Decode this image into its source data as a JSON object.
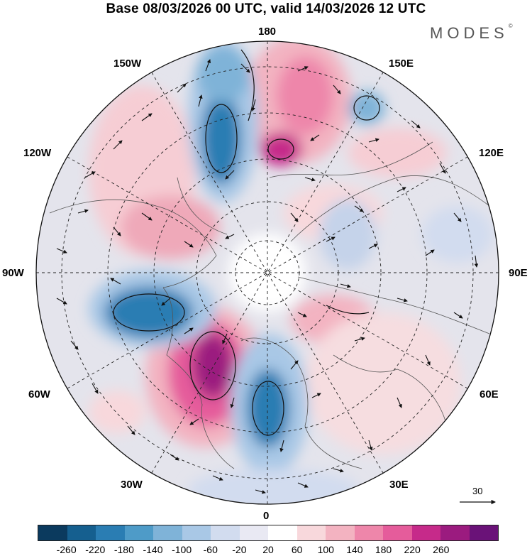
{
  "title": "Base 08/03/2026 00 UTC, valid 14/03/2026 12 UTC",
  "brand": "MODES",
  "brand_mark": "©",
  "longitude_labels": {
    "top": "180",
    "bottom": "0",
    "left": "90W",
    "right": "90E",
    "upper_left_1": "150W",
    "upper_left_2": "120W",
    "upper_right_1": "150E",
    "upper_right_2": "120E",
    "lower_left_1": "60W",
    "lower_left_2": "30W",
    "lower_right_1": "60E",
    "lower_right_2": "30E"
  },
  "reference_vector": {
    "label": "30",
    "icon": "arrow-right-icon"
  },
  "colorbar": {
    "ticks": [
      "-260",
      "-220",
      "-180",
      "-140",
      "-100",
      "-60",
      "-20",
      "20",
      "60",
      "100",
      "140",
      "180",
      "220",
      "260"
    ],
    "colors": [
      "#0b3a5e",
      "#155f8f",
      "#2a7db3",
      "#4e9bc8",
      "#7fb3d8",
      "#a9c8e6",
      "#d2dcef",
      "#e9e9f3",
      "#ffffff",
      "#f8d8dc",
      "#f3b3c1",
      "#ee86aa",
      "#e55c9b",
      "#c62a8a",
      "#9b1b7f",
      "#6a1278"
    ]
  }
}
